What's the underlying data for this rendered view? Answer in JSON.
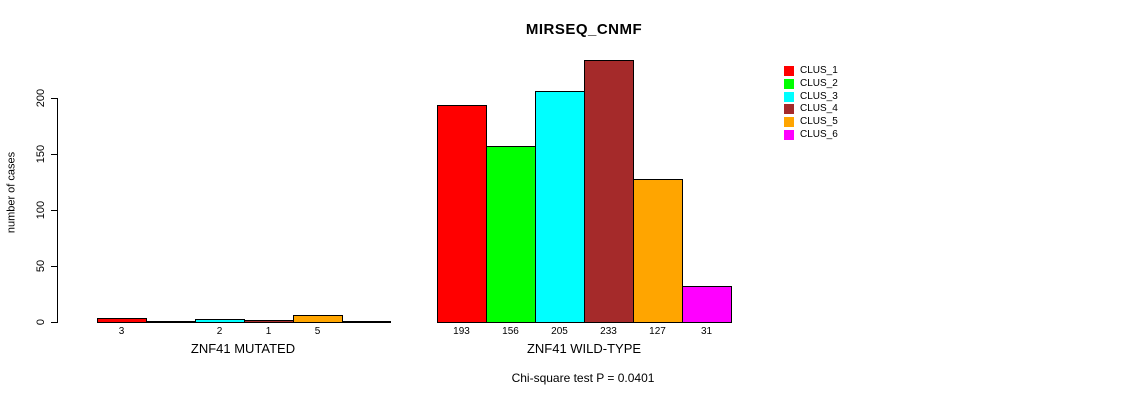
{
  "chart_data": {
    "type": "bar",
    "title": "MIRSEQ_CNMF",
    "ylabel": "number of cases",
    "annotation": "Chi-square test P = 0.0401",
    "groups": [
      "ZNF41 MUTATED",
      "ZNF41 WILD-TYPE"
    ],
    "series": [
      {
        "name": "CLUS_1",
        "color": "#FF0000",
        "values": [
          3,
          193
        ]
      },
      {
        "name": "CLUS_2",
        "color": "#00FF00",
        "values": [
          0,
          156
        ]
      },
      {
        "name": "CLUS_3",
        "color": "#00FFFF",
        "values": [
          2,
          205
        ]
      },
      {
        "name": "CLUS_4",
        "color": "#A52A2A",
        "values": [
          1,
          233
        ]
      },
      {
        "name": "CLUS_5",
        "color": "#FFA500",
        "values": [
          5,
          127
        ]
      },
      {
        "name": "CLUS_6",
        "color": "#FF00FF",
        "values": [
          0,
          31
        ]
      }
    ],
    "bar_labels": [
      [
        "3",
        "",
        "2",
        "1",
        "5",
        ""
      ],
      [
        "193",
        "156",
        "205",
        "233",
        "127",
        "31"
      ]
    ],
    "yticks": [
      0,
      50,
      100,
      150,
      200
    ],
    "ylim": [
      0,
      235
    ],
    "grid": false,
    "legend_position": "top-right",
    "bar_border_color": "#000000",
    "axis_color": "#000000"
  }
}
